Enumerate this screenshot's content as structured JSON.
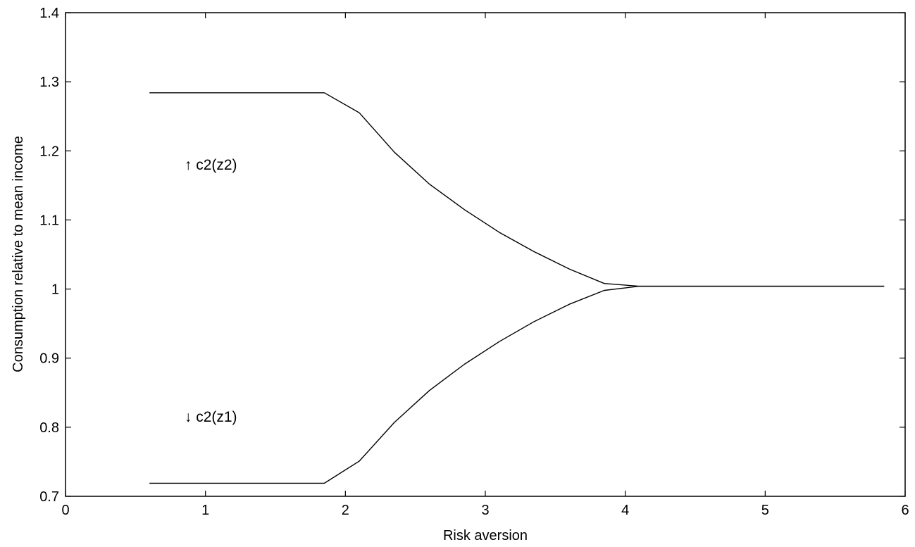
{
  "chart_data": {
    "type": "line",
    "title": "",
    "xlabel": "Risk aversion",
    "ylabel": "Consumption relative to mean income",
    "xlim": [
      0,
      6
    ],
    "ylim": [
      0.7,
      1.4
    ],
    "xticks": [
      "0",
      "1",
      "2",
      "3",
      "4",
      "5",
      "6"
    ],
    "yticks": [
      "0.7",
      "0.8",
      "0.9",
      "1",
      "1.1",
      "1.2",
      "1.3",
      "1.4"
    ],
    "grid": false,
    "legend": "none",
    "line_color": "#000000",
    "series": [
      {
        "name": "c2(z2)",
        "x": [
          0.6,
          1.85,
          2.1,
          2.35,
          2.6,
          2.85,
          3.1,
          3.35,
          3.6,
          3.85,
          4.1,
          5.85
        ],
        "y": [
          1.284,
          1.284,
          1.255,
          1.198,
          1.152,
          1.115,
          1.082,
          1.054,
          1.029,
          1.008,
          1.004,
          1.004
        ]
      },
      {
        "name": "c2(z1)",
        "x": [
          0.6,
          1.85,
          2.1,
          2.35,
          2.6,
          2.85,
          3.1,
          3.35,
          3.6,
          3.85,
          4.1,
          5.85
        ],
        "y": [
          0.719,
          0.719,
          0.751,
          0.807,
          0.853,
          0.891,
          0.924,
          0.953,
          0.978,
          0.998,
          1.004,
          1.004
        ]
      }
    ],
    "annotations": [
      {
        "text": "↑ c2(z2)",
        "x": 0.85,
        "y": 1.18
      },
      {
        "text": "↓ c2(z1)",
        "x": 0.85,
        "y": 0.815
      }
    ]
  }
}
